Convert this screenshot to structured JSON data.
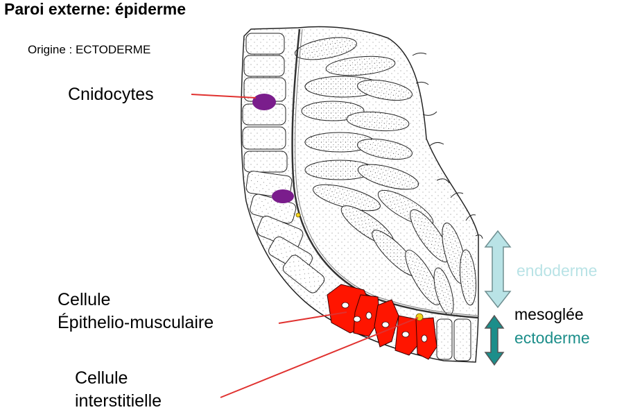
{
  "title": "Paroi externe: épiderme",
  "origin": "Origine : ECTODERME",
  "labels": {
    "cnidocytes": "Cnidocytes",
    "epithelio_line1": "Cellule",
    "epithelio_line2": "Épithelio-musculaire",
    "interstitial_line1": "Cellule",
    "interstitial_line2": "interstitielle"
  },
  "layers": {
    "endoderme": "endoderme",
    "mesoglee": "mesoglée",
    "ectoderme": "ectoderme"
  },
  "colors": {
    "endoderme": "#b9e3e6",
    "ectoderme": "#1c8e8a",
    "pointer": "#e0312f",
    "cnidocyte_fill": "#7a1d8c",
    "epithelial_fill": "#ff1500"
  }
}
